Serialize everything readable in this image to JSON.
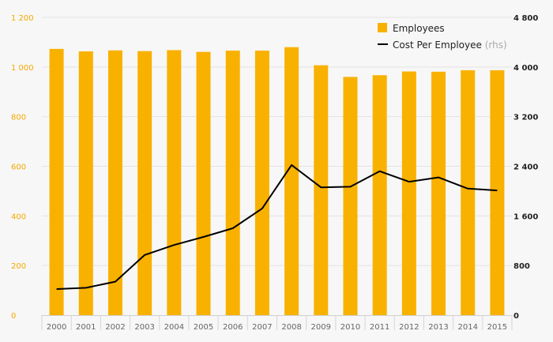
{
  "chart_data": {
    "type": "bar",
    "categories": [
      "2000",
      "2001",
      "2002",
      "2003",
      "2004",
      "2005",
      "2006",
      "2007",
      "2008",
      "2009",
      "2010",
      "2011",
      "2012",
      "2013",
      "2014",
      "2015"
    ],
    "series": [
      {
        "name": "Employees",
        "type": "bar",
        "axis": "left",
        "color": "#f9b100",
        "values": [
          1073,
          1063,
          1067,
          1064,
          1068,
          1061,
          1066,
          1066,
          1080,
          1007,
          960,
          967,
          982,
          981,
          987,
          987
        ]
      },
      {
        "name": "Cost Per Employee",
        "name_suffix": "(rhs)",
        "type": "line",
        "axis": "right",
        "color": "#000000",
        "values": [
          420,
          440,
          540,
          970,
          1130,
          1260,
          1400,
          1720,
          2420,
          2060,
          2070,
          2320,
          2150,
          2220,
          2040,
          2010
        ]
      }
    ],
    "y_left": {
      "ylim": [
        0,
        1200
      ],
      "ticks": [
        0,
        200,
        400,
        600,
        800,
        1000,
        1200
      ],
      "tick_labels": [
        "0",
        "200",
        "400",
        "600",
        "800",
        "1 000",
        "1 200"
      ],
      "color": "#f5a800"
    },
    "y_right": {
      "ylim": [
        0,
        4800
      ],
      "ticks": [
        0,
        800,
        1600,
        2400,
        3200,
        4000,
        4800
      ],
      "tick_labels": [
        "0",
        "800",
        "1 600",
        "2 400",
        "3 200",
        "4 000",
        "4 800"
      ],
      "color": "#222222"
    },
    "grid": true,
    "legend_position": "top-right",
    "colors": {
      "background": "#f7f7f7",
      "grid": "#e3e3e3"
    }
  }
}
